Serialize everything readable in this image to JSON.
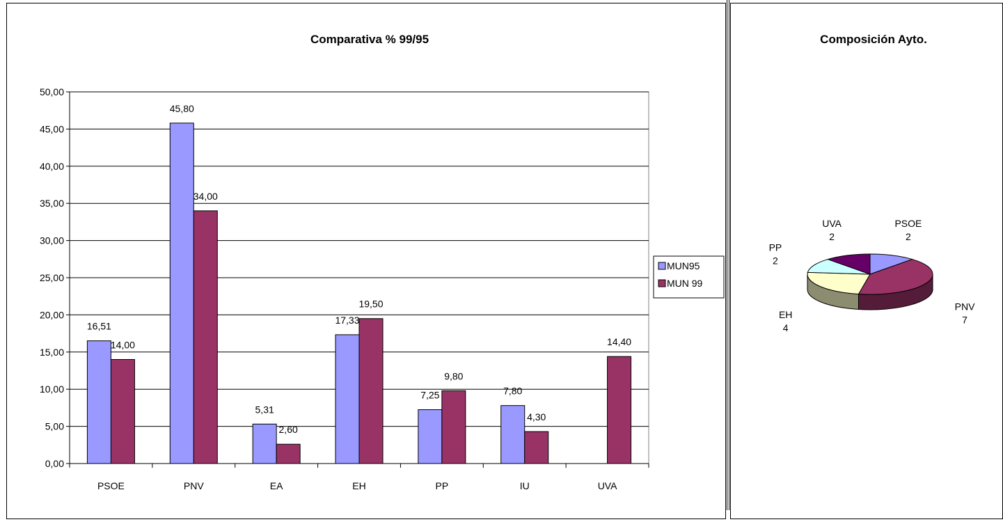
{
  "chart_data": [
    {
      "type": "bar",
      "title": "Comparativa % 99/95",
      "categories": [
        "PSOE",
        "PNV",
        "EA",
        "EH",
        "PP",
        "IU",
        "UVA"
      ],
      "series": [
        {
          "name": "MUN95",
          "values": [
            16.51,
            45.8,
            5.31,
            17.33,
            7.25,
            7.8,
            null
          ],
          "labels": [
            "16,51",
            "45,80",
            "5,31",
            "17,33",
            "7,25",
            "7,80",
            ""
          ],
          "color": "#9999ff"
        },
        {
          "name": "MUN 99",
          "values": [
            14.0,
            34.0,
            2.6,
            19.5,
            9.8,
            4.3,
            14.4
          ],
          "labels": [
            "14,00",
            "34,00",
            "2,60",
            "19,50",
            "9,80",
            "4,30",
            "14,40"
          ],
          "color": "#993366"
        }
      ],
      "ylim": [
        0,
        50
      ],
      "yticks": [
        "0,00",
        "5,00",
        "10,00",
        "15,00",
        "20,00",
        "25,00",
        "30,00",
        "35,00",
        "40,00",
        "45,00",
        "50,00"
      ],
      "grid": true,
      "legend": "right"
    },
    {
      "type": "pie",
      "title": "Composición Ayto.",
      "slices": [
        {
          "label": "PSOE",
          "value": 2,
          "value_text": "2",
          "color": "#9999ff"
        },
        {
          "label": "PNV",
          "value": 7,
          "value_text": "7",
          "color": "#993366"
        },
        {
          "label": "EH",
          "value": 4,
          "value_text": "4",
          "color": "#ffffcc"
        },
        {
          "label": "PP",
          "value": 2,
          "value_text": "2",
          "color": "#ccffff"
        },
        {
          "label": "UVA",
          "value": 2,
          "value_text": "2",
          "color": "#660066"
        }
      ]
    }
  ]
}
